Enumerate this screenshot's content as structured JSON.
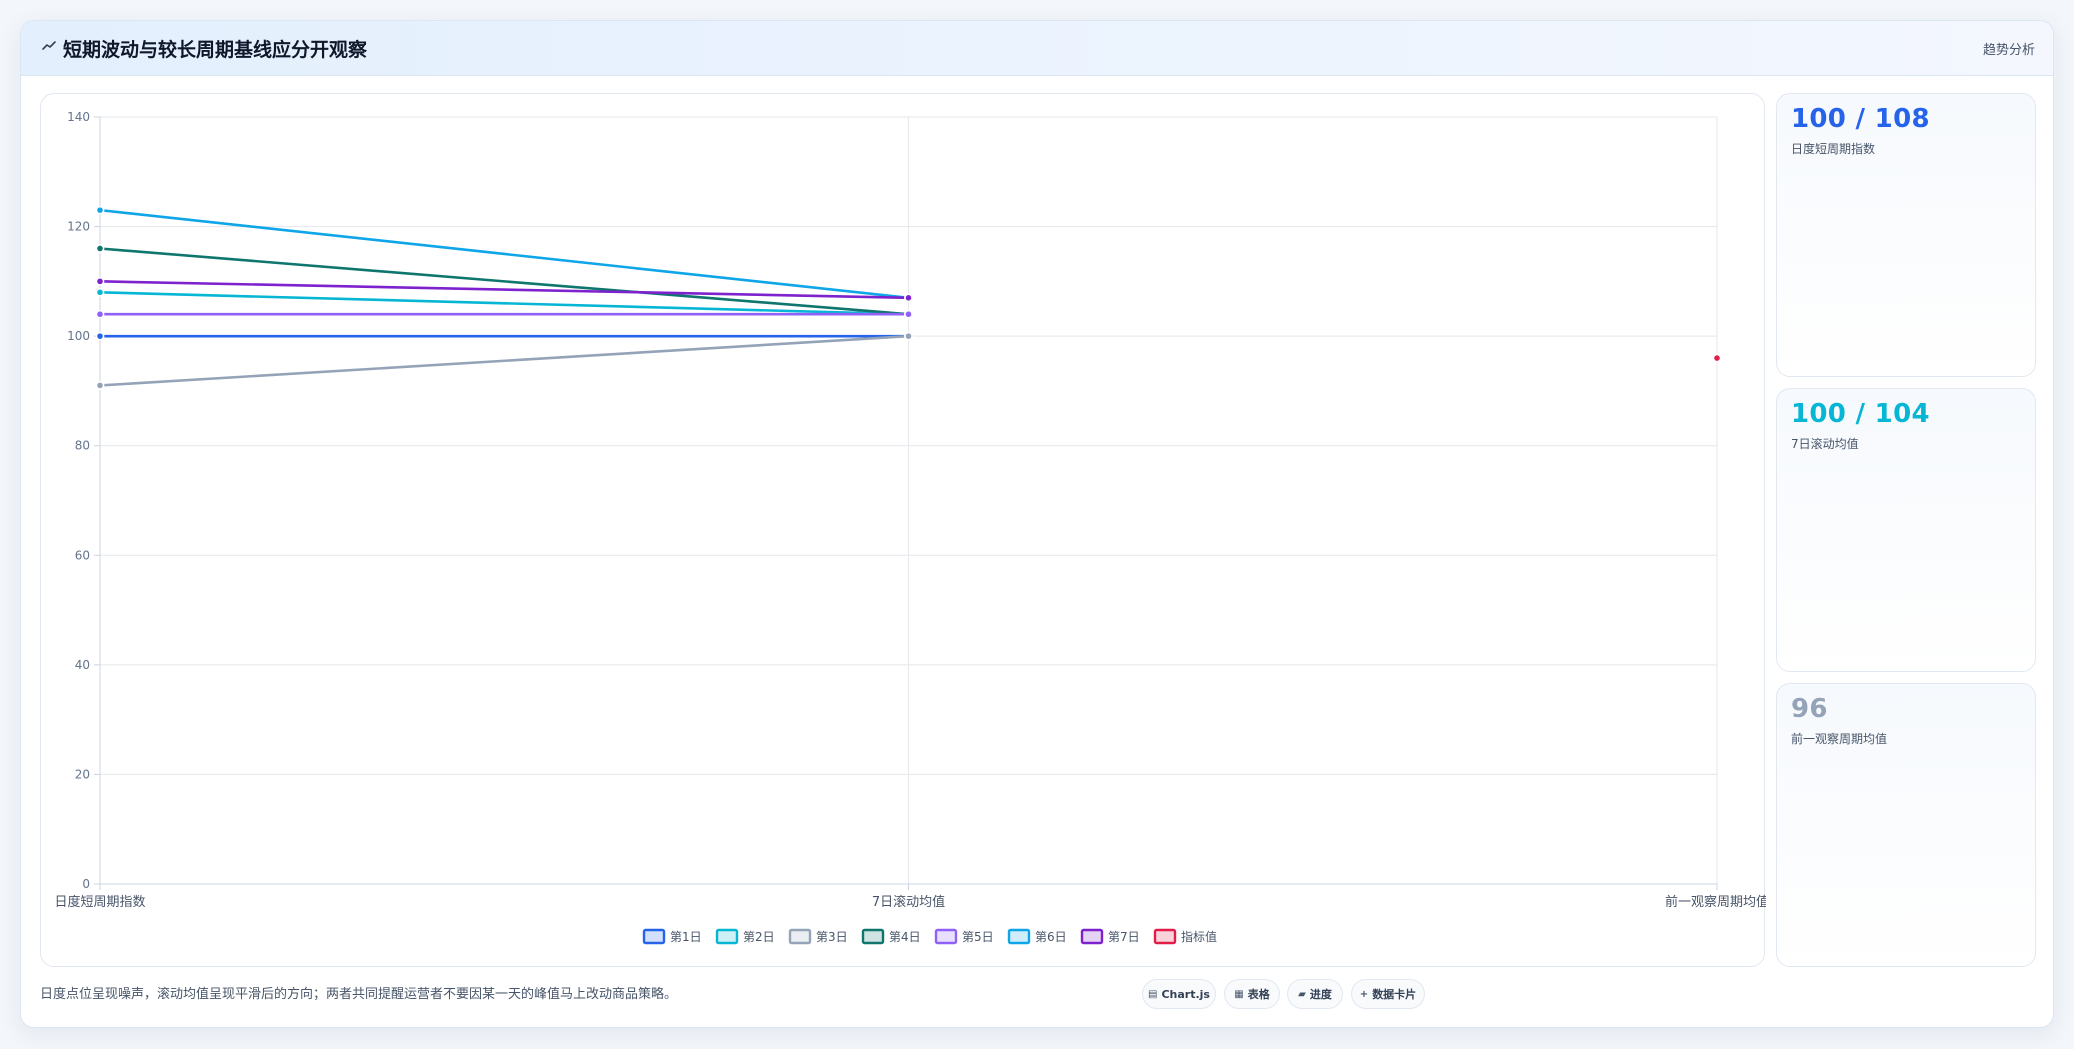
{
  "header": {
    "title": "短期波动与较长周期基线应分开观察",
    "tag": "趋势分析"
  },
  "chart_data": {
    "type": "line",
    "x": [
      "日度短周期指数",
      "7日滚动均值",
      "前一观察周期均值"
    ],
    "ylim": [
      0,
      140
    ],
    "yticks": [
      0,
      20,
      40,
      60,
      80,
      100,
      120,
      140
    ],
    "grid": true,
    "legend_position": "bottom",
    "series": [
      {
        "name": "第1日",
        "values": [
          100,
          100,
          null
        ],
        "color": "#2563eb"
      },
      {
        "name": "第2日",
        "values": [
          108,
          104,
          null
        ],
        "color": "#06b6d4"
      },
      {
        "name": "第3日",
        "values": [
          91,
          100,
          null
        ],
        "color": "#94a3b8"
      },
      {
        "name": "第4日",
        "values": [
          116,
          104,
          null
        ],
        "color": "#0f766e"
      },
      {
        "name": "第5日",
        "values": [
          104,
          104,
          null
        ],
        "color": "#9061f9"
      },
      {
        "name": "第6日",
        "values": [
          123,
          107,
          null
        ],
        "color": "#0ea5e9"
      },
      {
        "name": "第7日",
        "values": [
          110,
          107,
          null
        ],
        "color": "#7e22ce"
      },
      {
        "name": "指标值",
        "values": [
          null,
          null,
          96
        ],
        "color": "#e11d48"
      }
    ]
  },
  "kpis": [
    {
      "value": "100 / 108",
      "label": "日度短周期指数",
      "color": "#2563eb"
    },
    {
      "value": "100 / 104",
      "label": "7日滚动均值",
      "color": "#06b6d4"
    },
    {
      "value": "96",
      "label": "前一观察周期均值",
      "color": "#94a3b8"
    }
  ],
  "note": "日度点位呈现噪声，滚动均值呈现平滑后的方向；两者共同提醒运营者不要因某一天的峰值马上改动商品策略。",
  "pills": [
    {
      "icon": "chart-icon",
      "glyph": "▤",
      "label": "Chart.js"
    },
    {
      "icon": "table-icon",
      "glyph": "▦",
      "label": "表格"
    },
    {
      "icon": "progress-icon",
      "glyph": "▰",
      "label": "进度"
    },
    {
      "icon": "plus-icon",
      "glyph": "+",
      "label": "数据卡片"
    }
  ]
}
